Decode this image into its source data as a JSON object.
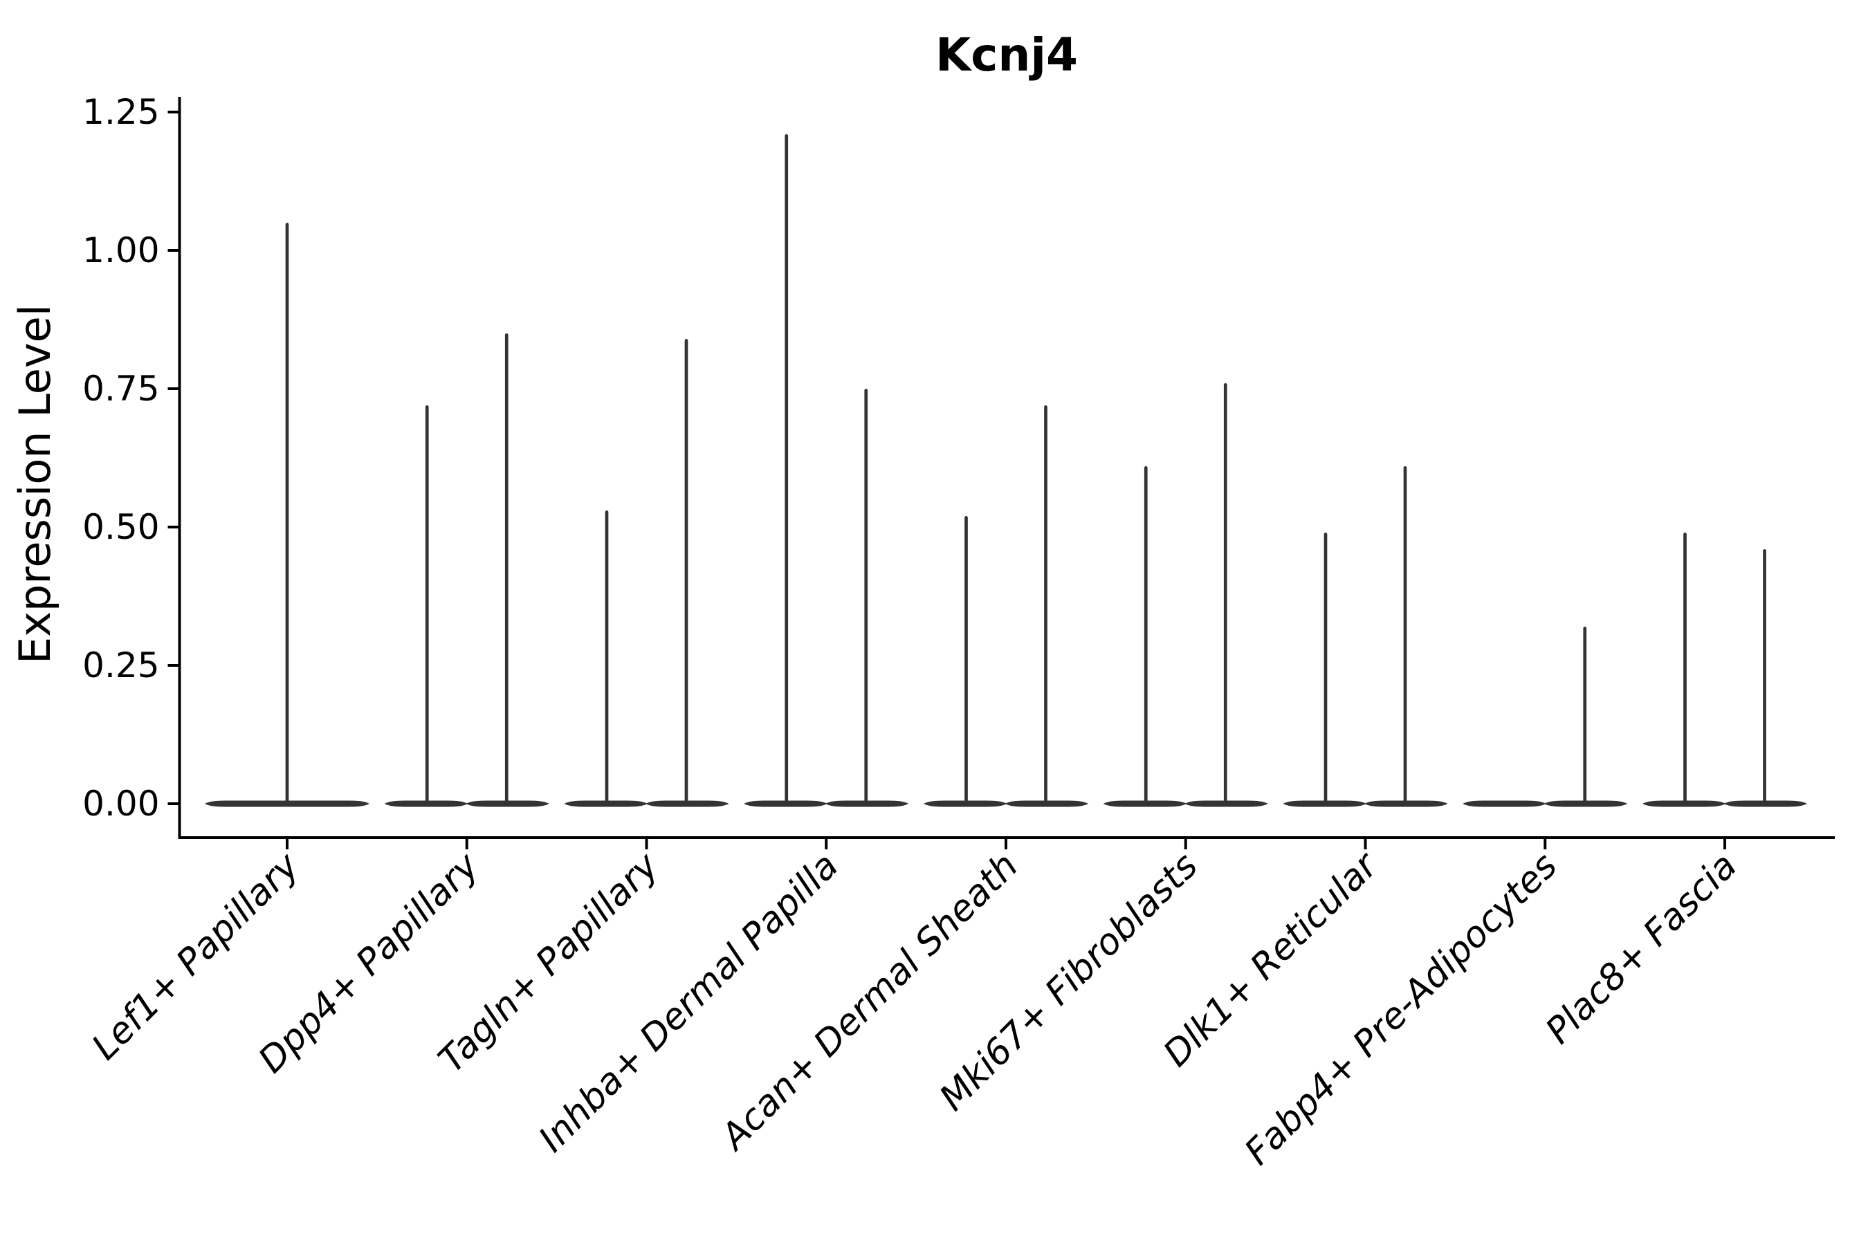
{
  "chart_data": {
    "type": "violin",
    "title": "Kcnj4",
    "xlabel": "",
    "ylabel": "Expression Level",
    "ylim": [
      -0.06,
      1.31
    ],
    "ytick_values": [
      0.0,
      0.25,
      0.5,
      0.75,
      1.0,
      1.25
    ],
    "ytick_labels": [
      "0.00",
      "0.25",
      "0.50",
      "0.75",
      "1.00",
      "1.25"
    ],
    "grid": false,
    "legend_position": "none",
    "categories": [
      "Lef1+ Papillary",
      "Dpp4+ Papillary",
      "Tagln+ Papillary",
      "Inhba+ Dermal Papilla",
      "Acan+ Dermal Sheath",
      "Mki67+ Fibroblasts",
      "Dlk1+ Reticular",
      "Fabp4+ Pre-Adipocytes",
      "Plac8+ Fascia"
    ],
    "groups": [
      {
        "category": "Lef1+ Papillary",
        "violins": [
          {
            "position": "center",
            "max_expression": 1.05
          }
        ]
      },
      {
        "category": "Dpp4+ Papillary",
        "violins": [
          {
            "position": "left",
            "max_expression": 0.72
          },
          {
            "position": "right",
            "max_expression": 0.85
          }
        ]
      },
      {
        "category": "Tagln+ Papillary",
        "violins": [
          {
            "position": "left",
            "max_expression": 0.53
          },
          {
            "position": "right",
            "max_expression": 0.84
          }
        ]
      },
      {
        "category": "Inhba+ Dermal Papilla",
        "violins": [
          {
            "position": "left",
            "max_expression": 1.21
          },
          {
            "position": "right",
            "max_expression": 0.75
          }
        ]
      },
      {
        "category": "Acan+ Dermal Sheath",
        "violins": [
          {
            "position": "left",
            "max_expression": 0.52
          },
          {
            "position": "right",
            "max_expression": 0.72
          }
        ]
      },
      {
        "category": "Mki67+ Fibroblasts",
        "violins": [
          {
            "position": "left",
            "max_expression": 0.61
          },
          {
            "position": "right",
            "max_expression": 0.76
          }
        ]
      },
      {
        "category": "Dlk1+ Reticular",
        "violins": [
          {
            "position": "left",
            "max_expression": 0.49
          },
          {
            "position": "right",
            "max_expression": 0.61
          }
        ]
      },
      {
        "category": "Fabp4+ Pre-Adipocytes",
        "violins": [
          {
            "position": "left",
            "max_expression": 0.0
          },
          {
            "position": "right",
            "max_expression": 0.32
          }
        ]
      },
      {
        "category": "Plac8+ Fascia",
        "violins": [
          {
            "position": "left",
            "max_expression": 0.49
          },
          {
            "position": "right",
            "max_expression": 0.46
          }
        ]
      }
    ],
    "colors": {
      "violin": "#333333",
      "axis": "#000000",
      "text": "#000000",
      "background": "#ffffff"
    }
  }
}
